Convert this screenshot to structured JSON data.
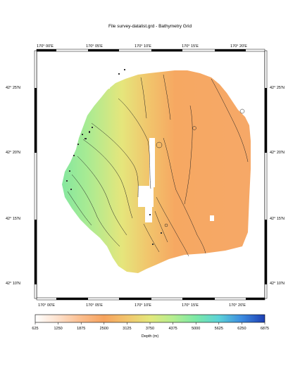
{
  "title": "File survey-datalist.grd - Bathymetry Grid",
  "x_ticks": [
    "170° 00'E",
    "170° 05'E",
    "170° 10'E",
    "170° 15'E",
    "170° 20'E"
  ],
  "y_ticks_left": [
    "42° 25'N",
    "42° 20'N",
    "42° 15'N",
    "42° 10'N"
  ],
  "y_ticks_right": [
    "42° 25'N",
    "42° 20'N",
    "42° 15'N",
    "42° 10'N"
  ],
  "colorbar": {
    "labels": [
      "625",
      "1250",
      "1875",
      "2500",
      "3125",
      "3750",
      "4375",
      "5000",
      "5625",
      "6250",
      "6875"
    ],
    "label": "Depth (m)",
    "colors": [
      "#ffffff",
      "#ffe2cf",
      "#fbb98a",
      "#f6a25c",
      "#f1c66b",
      "#e6e87a",
      "#b9ee8f",
      "#7de6a2",
      "#5fd0d6",
      "#3f8fe0",
      "#2044b8"
    ]
  },
  "colors": {
    "orange_shallow": "#f6a868",
    "orange_mid": "#f59f5a",
    "yellow": "#e2e47c",
    "green": "#7fe6a0",
    "contour": "#222222"
  }
}
